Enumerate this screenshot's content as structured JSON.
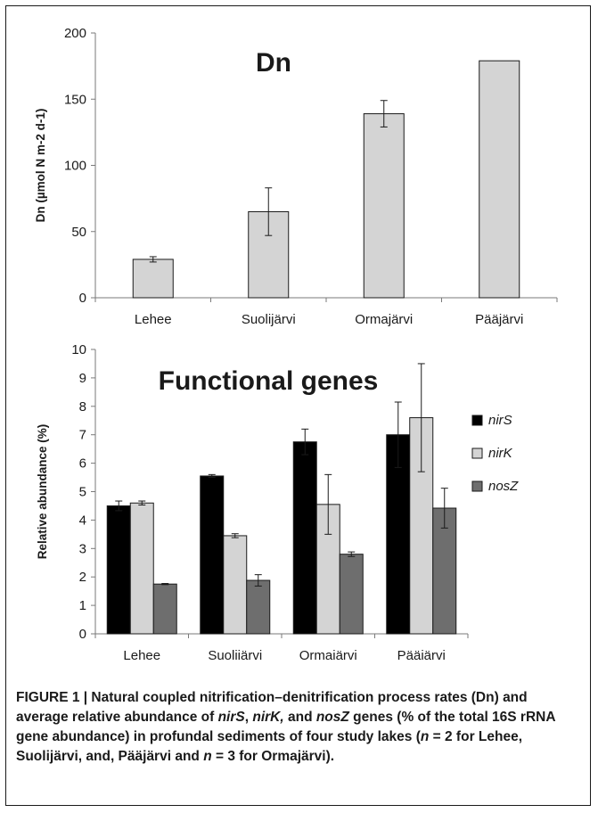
{
  "chart_data": [
    {
      "type": "bar",
      "title": "Dn",
      "ylabel": "Dn (µmol N m-2 d-1)",
      "xlabel": "",
      "categories": [
        "Lehee",
        "Suolijärvi",
        "Ormajärvi",
        "Pääjärvi"
      ],
      "series": [
        {
          "values": [
            29,
            65,
            139,
            179
          ],
          "errors": [
            2,
            18,
            10,
            0
          ],
          "color": "#d4d4d4"
        }
      ],
      "ylim": [
        0,
        200
      ],
      "yticks": [
        "0",
        "50",
        "100",
        "150",
        "200"
      ],
      "grid": false
    },
    {
      "type": "bar",
      "title": "Functional genes",
      "ylabel": "Relative abundance (%)",
      "xlabel": "",
      "categories": [
        "Lehee",
        "Suolijärvi",
        "Ormajärvi",
        "Pääjärvi"
      ],
      "series": [
        {
          "name": "nirS",
          "values": [
            4.5,
            5.55,
            6.75,
            7.0
          ],
          "errors": [
            0.17,
            0.05,
            0.45,
            1.15
          ],
          "color": "#000000"
        },
        {
          "name": "nirK",
          "values": [
            4.6,
            3.45,
            4.55,
            7.6
          ],
          "errors": [
            0.07,
            0.07,
            1.05,
            1.9
          ],
          "color": "#d4d4d4"
        },
        {
          "name": "nosZ",
          "values": [
            1.75,
            1.88,
            2.8,
            4.42
          ],
          "errors": [
            0.02,
            0.2,
            0.08,
            0.7
          ],
          "color": "#6e6e6e"
        }
      ],
      "ylim": [
        0,
        10
      ],
      "yticks": [
        "0",
        "1",
        "2",
        "3",
        "4",
        "5",
        "6",
        "7",
        "8",
        "9",
        "10"
      ],
      "legend": "right",
      "grid": false
    }
  ],
  "caption": {
    "parts": [
      {
        "text": "FIGURE 1 | Natural coupled nitrification–denitrification process rates (Dn) and average relative abundance of ",
        "italic": false
      },
      {
        "text": "nirS",
        "italic": true
      },
      {
        "text": ", ",
        "italic": false
      },
      {
        "text": "nirK,",
        "italic": true
      },
      {
        "text": " and ",
        "italic": false
      },
      {
        "text": "nosZ",
        "italic": true
      },
      {
        "text": " genes (% of the total 16S rRNA gene abundance) in profundal sediments of four study lakes (",
        "italic": false
      },
      {
        "text": "n",
        "italic": true
      },
      {
        "text": " = 2 for Lehee, Suolijärvi, and, Pääjärvi and ",
        "italic": false
      },
      {
        "text": "n",
        "italic": true
      },
      {
        "text": " = 3 for Ormajärvi).",
        "italic": false
      }
    ]
  }
}
